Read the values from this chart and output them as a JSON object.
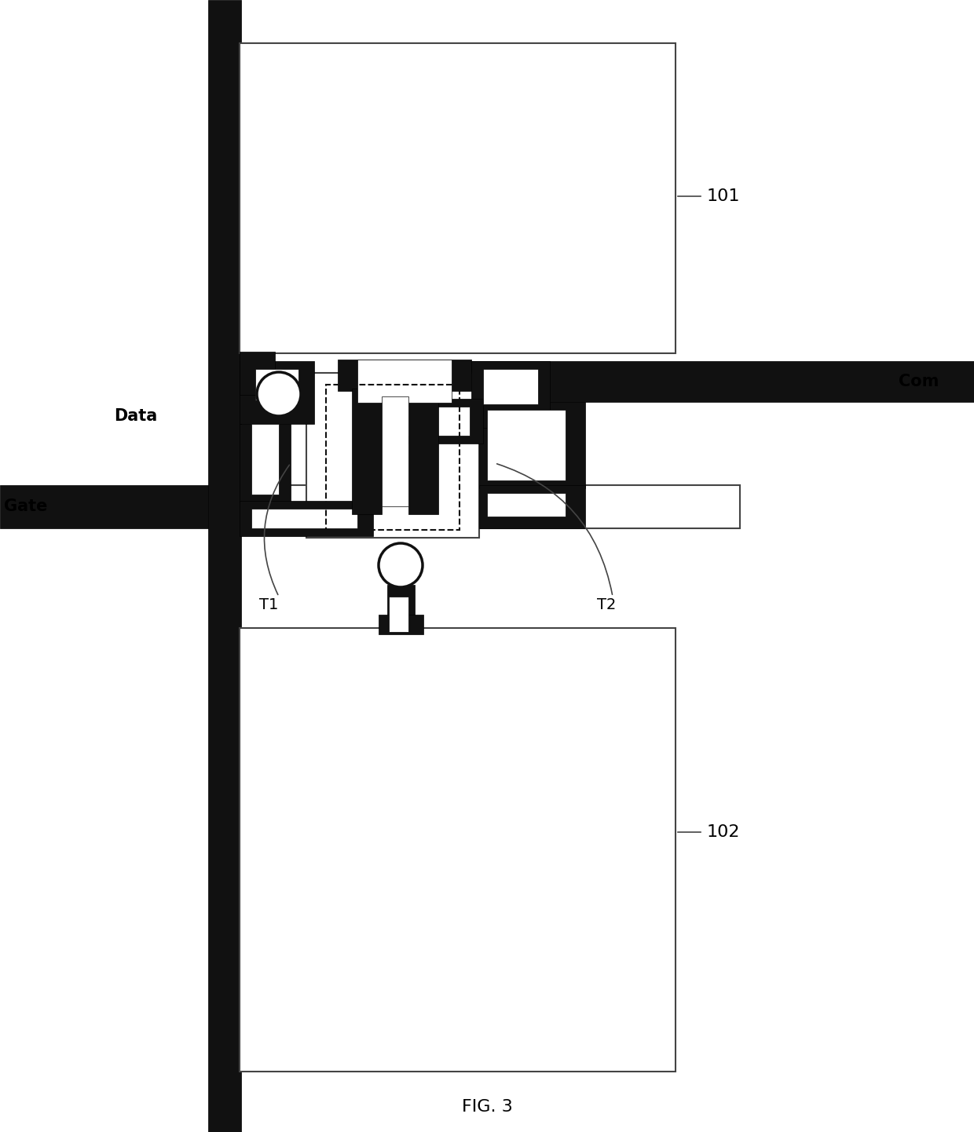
{
  "fig_width": 12.4,
  "fig_height": 14.42,
  "bg_color": "#ffffff",
  "black": "#111111",
  "line_color": "#444444",
  "figure_label": "FIG. 3",
  "label_101": "101",
  "label_102": "102",
  "label_T1": "T1",
  "label_T2": "T2",
  "label_Data": "Data",
  "label_Gate": "Gate",
  "label_Com": "Com"
}
